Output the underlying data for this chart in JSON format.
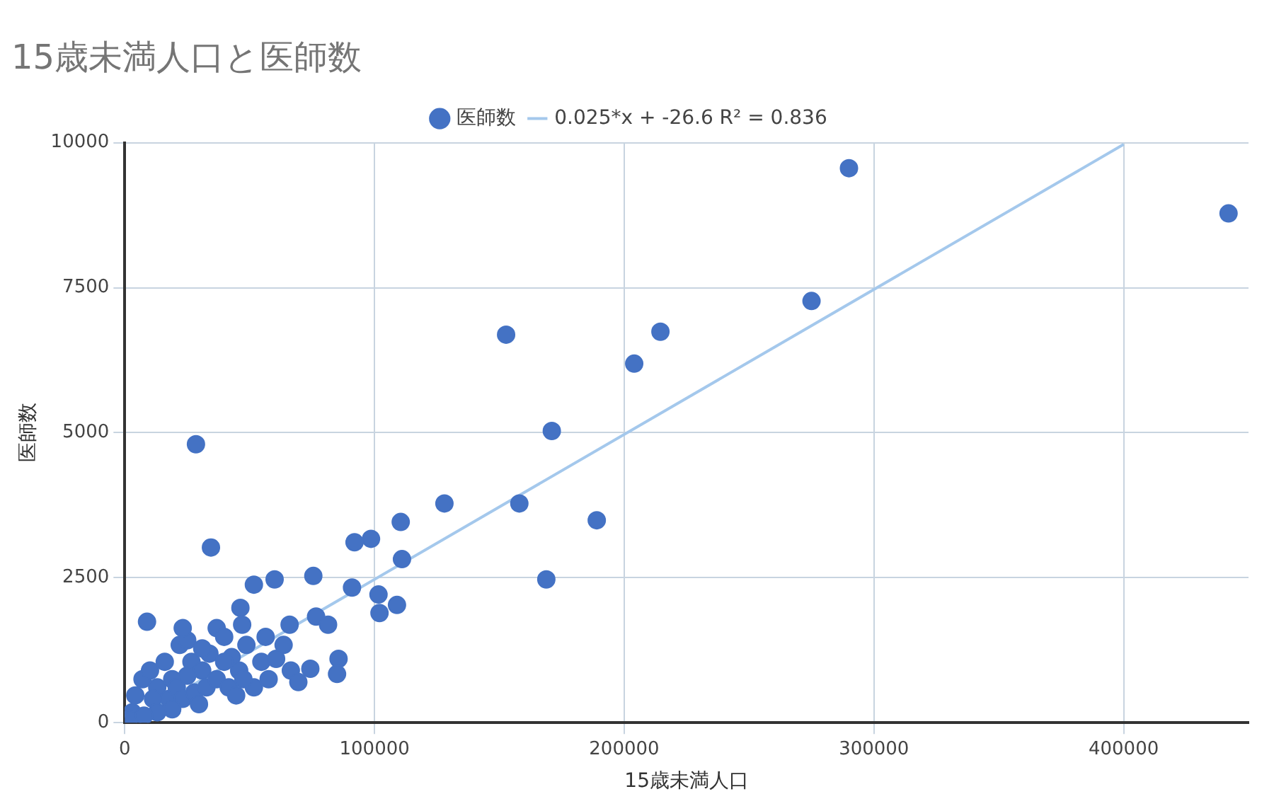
{
  "chart_data": {
    "type": "scatter",
    "title": "15歳未満人口と医師数",
    "xlabel": "15歳未満人口",
    "ylabel": "医師数",
    "xlim": [
      0,
      450000
    ],
    "xticks": [
      0,
      100000,
      200000,
      300000,
      400000
    ],
    "ylim": [
      0,
      10000
    ],
    "yticks": [
      0,
      2500,
      5000,
      7500,
      10000
    ],
    "grid": true,
    "legend": "top",
    "series": [
      {
        "name": "医師数",
        "color": "#4472c4",
        "marker": "circle",
        "x": [
          442000,
          290000,
          275000,
          214500,
          204000,
          152700,
          171000,
          158000,
          189000,
          168800,
          128000,
          110500,
          98600,
          92000,
          111000,
          91000,
          101600,
          109000,
          102000,
          28500,
          34500,
          8900,
          75500,
          60000,
          51700,
          46300,
          76600,
          81400,
          66000,
          85600,
          85000,
          74300,
          63600,
          4200,
          7100,
          10100,
          13000,
          16000,
          19000,
          22000,
          25000,
          26700,
          31000,
          33900,
          36800,
          39800,
          42800,
          45800,
          48700,
          51700,
          54700,
          57600,
          60600,
          66500,
          69500,
          3000,
          1800,
          11300,
          17800,
          20800,
          23200,
          27900,
          32700,
          36800,
          41600,
          44600,
          47500,
          29700,
          19000,
          13000,
          7700,
          25000,
          31000,
          39800,
          56400,
          47000,
          23200
        ],
        "values": [
          8780,
          9560,
          7270,
          6740,
          6190,
          6690,
          5030,
          3780,
          3490,
          2470,
          3780,
          3460,
          3170,
          3110,
          2820,
          2330,
          2210,
          2030,
          1890,
          4800,
          3020,
          1740,
          2530,
          2470,
          2380,
          1980,
          1830,
          1690,
          1690,
          1100,
          840,
          930,
          1340,
          470,
          750,
          900,
          610,
          1050,
          750,
          1340,
          1420,
          1050,
          900,
          1190,
          1630,
          1480,
          1130,
          900,
          1340,
          610,
          1050,
          750,
          1100,
          900,
          700,
          180,
          60,
          410,
          410,
          610,
          410,
          520,
          610,
          750,
          610,
          470,
          750,
          320,
          230,
          180,
          120,
          810,
          1280,
          1050,
          1480,
          1690,
          1630
        ]
      },
      {
        "name": "0.025*x + -26.6 R² = 0.836",
        "color": "#a4c8ec",
        "type": "line",
        "marker": "none",
        "line_style": "solid",
        "x": [
          10000,
          400000
        ],
        "values": [
          220,
          9970
        ]
      }
    ]
  }
}
